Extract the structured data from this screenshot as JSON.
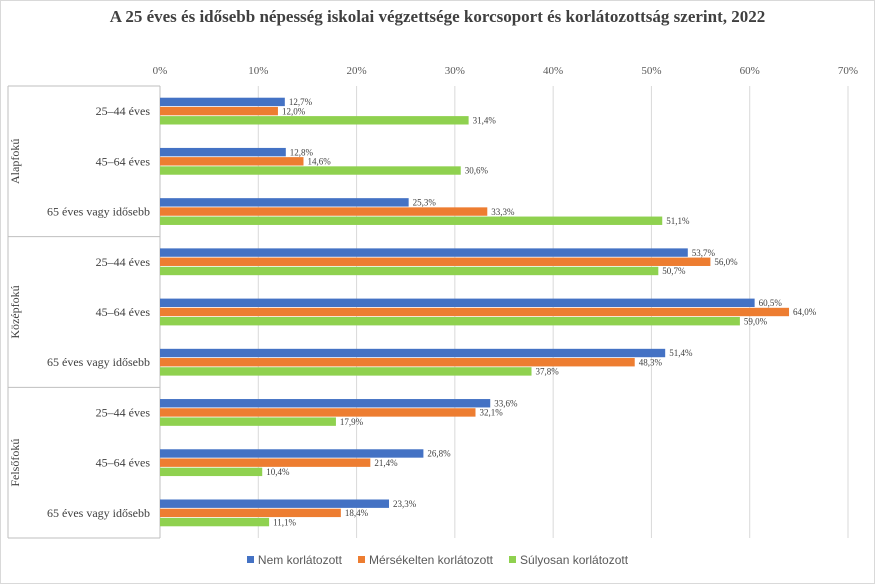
{
  "chart_data": {
    "type": "bar",
    "orientation": "horizontal",
    "title": "A 25 éves és idősebb népesség iskolai végzettsége korcsoport és korlátozottság szerint, 2022",
    "xlim": [
      0,
      70
    ],
    "xticks": [
      "0%",
      "10%",
      "20%",
      "30%",
      "40%",
      "50%",
      "60%",
      "70%"
    ],
    "groups": [
      {
        "name": "Alapfokú",
        "categories": [
          "25–44  éves",
          "45–64  éves",
          "65 éves vagy idősebb"
        ]
      },
      {
        "name": "Középfokú",
        "categories": [
          "25–44  éves",
          "45–64  éves",
          "65 éves vagy idősebb"
        ]
      },
      {
        "name": "Felsőfokú",
        "categories": [
          "25–44  éves",
          "45–64  éves",
          "65 éves vagy idősebb"
        ]
      }
    ],
    "series": [
      {
        "name": "Nem korlátozott",
        "color": "#4472c4",
        "values": [
          12.7,
          12.8,
          25.3,
          53.7,
          60.5,
          51.4,
          33.6,
          26.8,
          23.3
        ],
        "labels": [
          "12,7%",
          "12,8%",
          "25,3%",
          "53,7%",
          "60,5%",
          "51,4%",
          "33,6%",
          "26,8%",
          "23,3%"
        ]
      },
      {
        "name": "Mérsékelten korlátozott",
        "color": "#ed7d31",
        "values": [
          12.0,
          14.6,
          33.3,
          56.0,
          64.0,
          48.3,
          32.1,
          21.4,
          18.4
        ],
        "labels": [
          "12,0%",
          "14,6%",
          "33,3%",
          "56,0%",
          "64,0%",
          "48,3%",
          "32,1%",
          "21,4%",
          "18,4%"
        ]
      },
      {
        "name": "Súlyosan korlátozott",
        "color": "#8fd14f",
        "values": [
          31.4,
          30.6,
          51.1,
          50.7,
          59.0,
          37.8,
          17.9,
          10.4,
          11.1
        ],
        "labels": [
          "31,4%",
          "30,6%",
          "51,1%",
          "50,7%",
          "59,0%",
          "37,8%",
          "17,9%",
          "10,4%",
          "11,1%"
        ]
      }
    ],
    "grid": true,
    "legend": "bottom"
  }
}
